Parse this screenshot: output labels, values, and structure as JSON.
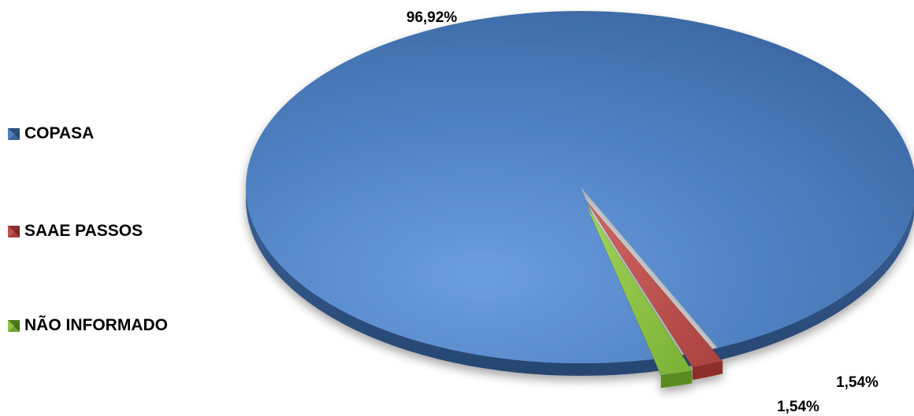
{
  "chart_data": {
    "type": "pie",
    "style": "3d-exploded",
    "legend_position": "left",
    "series": [
      {
        "name": "COPASA",
        "value": 96.92,
        "label": "96,92%",
        "color": "#4F81BD"
      },
      {
        "name": "SAAE PASSOS",
        "value": 1.54,
        "label": "1,54%",
        "color": "#C0504D"
      },
      {
        "name": "NÃO INFORMADO",
        "value": 1.54,
        "label": "1,54%",
        "color": "#8DC63F"
      }
    ]
  }
}
